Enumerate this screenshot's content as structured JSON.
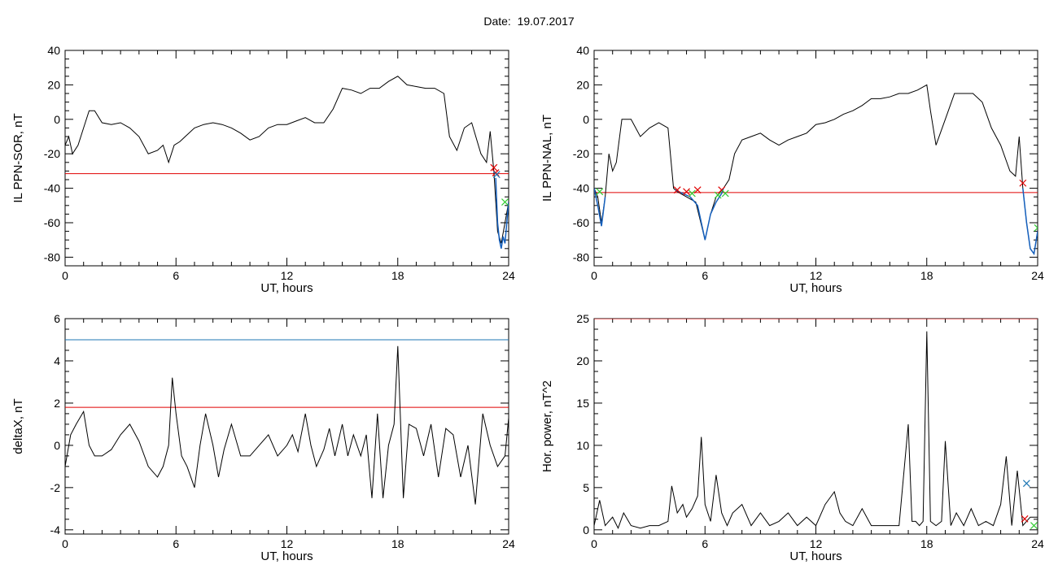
{
  "header": {
    "date_label": "Date:",
    "date_value": "19.07.2017"
  },
  "colors": {
    "trace": "#000000",
    "threshold": "#e00000",
    "upper_threshold": "#1f77b4",
    "highlight_trace": "#1560bd",
    "marker_red": "#e00000",
    "marker_green": "#33cc33",
    "marker_blue": "#1f77b4"
  },
  "chart_data": [
    {
      "type": "line",
      "ylabel": "IL PPN-SOR, nT",
      "xlabel": "UT, hours",
      "xlim": [
        0,
        24
      ],
      "ylim": [
        -85,
        40
      ],
      "xticks": [
        0,
        6,
        12,
        18,
        24
      ],
      "yticks": [
        -80,
        -60,
        -40,
        -20,
        0,
        20,
        40
      ],
      "thresholds": [
        {
          "value": -31.5,
          "color": "#e00000"
        }
      ],
      "series": [
        {
          "x": [
            0,
            0.2,
            0.4,
            0.7,
            1,
            1.3,
            1.6,
            2,
            2.5,
            3,
            3.5,
            4,
            4.5,
            5,
            5.3,
            5.6,
            5.9,
            6.2,
            6.5,
            7,
            7.5,
            8,
            8.5,
            9,
            9.5,
            10,
            10.5,
            11,
            11.5,
            12,
            12.5,
            13,
            13.5,
            14,
            14.5,
            15,
            15.5,
            16,
            16.5,
            17,
            17.5,
            18,
            18.5,
            19,
            19.5,
            20,
            20.5,
            20.8,
            21.2,
            21.6,
            22,
            22.5,
            22.8,
            23,
            23.2,
            23.4,
            23.6,
            23.8,
            24
          ],
          "y": [
            -15,
            -10,
            -20,
            -15,
            -5,
            5,
            5,
            -2,
            -3,
            -2,
            -5,
            -10,
            -20,
            -18,
            -15,
            -25,
            -15,
            -13,
            -10,
            -5,
            -3,
            -2,
            -3,
            -5,
            -8,
            -12,
            -10,
            -5,
            -3,
            -3,
            -1,
            1,
            -2,
            -2,
            6,
            18,
            17,
            15,
            18,
            18,
            22,
            25,
            20,
            19,
            18,
            18,
            15,
            -10,
            -18,
            -5,
            -2,
            -20,
            -25,
            -7,
            -30,
            -65,
            -72,
            -60,
            -48
          ]
        }
      ],
      "highlight": {
        "x": [
          23.3,
          23.4,
          23.5,
          23.6,
          23.7,
          23.8,
          23.9,
          24
        ],
        "y": [
          -34,
          -60,
          -70,
          -75,
          -68,
          -72,
          -60,
          -48
        ]
      },
      "markers": [
        {
          "x": 23.2,
          "y": -28,
          "color": "#e00000"
        },
        {
          "x": 23.3,
          "y": -31,
          "color": "#e00000"
        },
        {
          "x": 23.35,
          "y": -32,
          "color": "#1f77b4"
        },
        {
          "x": 23.8,
          "y": -48,
          "color": "#33cc33"
        }
      ]
    },
    {
      "type": "line",
      "ylabel": "IL PPN-NAL, nT",
      "xlabel": "UT, hours",
      "xlim": [
        0,
        24
      ],
      "ylim": [
        -85,
        40
      ],
      "xticks": [
        0,
        6,
        12,
        18,
        24
      ],
      "yticks": [
        -80,
        -60,
        -40,
        -20,
        0,
        20,
        40
      ],
      "thresholds": [
        {
          "value": -42.5,
          "color": "#e00000"
        }
      ],
      "series": [
        {
          "x": [
            0,
            0.2,
            0.4,
            0.6,
            0.8,
            1,
            1.2,
            1.5,
            2,
            2.5,
            3,
            3.5,
            4,
            4.3,
            4.5,
            5,
            5.5,
            6,
            6.3,
            6.6,
            7,
            7.3,
            7.6,
            8,
            8.5,
            9,
            9.5,
            10,
            10.5,
            11,
            11.5,
            12,
            12.5,
            13,
            13.5,
            14,
            14.5,
            15,
            15.5,
            16,
            16.5,
            17,
            17.5,
            18,
            18.2,
            18.5,
            19,
            19.5,
            20,
            20.5,
            21,
            21.5,
            22,
            22.5,
            22.8,
            23,
            23.2,
            23.4,
            23.6,
            23.8,
            24
          ],
          "y": [
            -40,
            -45,
            -60,
            -45,
            -20,
            -30,
            -25,
            0,
            0,
            -10,
            -5,
            -2,
            -5,
            -40,
            -42,
            -45,
            -48,
            -70,
            -55,
            -45,
            -40,
            -35,
            -20,
            -12,
            -10,
            -8,
            -12,
            -15,
            -12,
            -10,
            -8,
            -3,
            -2,
            0,
            3,
            5,
            8,
            12,
            12,
            13,
            15,
            15,
            17,
            20,
            5,
            -15,
            0,
            15,
            15,
            15,
            10,
            -5,
            -15,
            -30,
            -33,
            -10,
            -40,
            -60,
            -75,
            -78,
            -65
          ]
        }
      ],
      "highlight": {
        "x": [
          4.4,
          4.8,
          5.2,
          5.6,
          6,
          6.3,
          6.6,
          6.9,
          7
        ],
        "y": [
          -41,
          -43,
          -45,
          -50,
          -70,
          -55,
          -48,
          -43,
          -40
        ]
      },
      "highlight2": {
        "x": [
          0,
          0.2,
          0.4,
          0.6
        ],
        "y": [
          -40,
          -50,
          -62,
          -45
        ]
      },
      "highlight3": {
        "x": [
          23.2,
          23.4,
          23.6,
          23.8,
          24
        ],
        "y": [
          -40,
          -60,
          -75,
          -78,
          -65
        ]
      },
      "markers": [
        {
          "x": 0.3,
          "y": -42,
          "color": "#33cc33"
        },
        {
          "x": 4.5,
          "y": -41,
          "color": "#e00000"
        },
        {
          "x": 5.0,
          "y": -42,
          "color": "#e00000"
        },
        {
          "x": 5.3,
          "y": -43,
          "color": "#33cc33"
        },
        {
          "x": 5.6,
          "y": -41,
          "color": "#e00000"
        },
        {
          "x": 6.7,
          "y": -44,
          "color": "#33cc33"
        },
        {
          "x": 6.9,
          "y": -41,
          "color": "#e00000"
        },
        {
          "x": 7.1,
          "y": -43,
          "color": "#33cc33"
        },
        {
          "x": 23.2,
          "y": -37,
          "color": "#e00000"
        },
        {
          "x": 24,
          "y": -63,
          "color": "#33cc33"
        }
      ]
    },
    {
      "type": "line",
      "ylabel": "deltaX, nT",
      "xlabel": "UT, hours",
      "xlim": [
        0,
        24
      ],
      "ylim": [
        -4.2,
        6
      ],
      "xticks": [
        0,
        6,
        12,
        18,
        24
      ],
      "yticks": [
        -4,
        -2,
        0,
        2,
        4,
        6
      ],
      "thresholds": [
        {
          "value": 5.0,
          "color": "#1f77b4"
        },
        {
          "value": 1.8,
          "color": "#e00000"
        }
      ],
      "series": [
        {
          "x": [
            0,
            0.3,
            0.6,
            1,
            1.3,
            1.6,
            2,
            2.5,
            3,
            3.5,
            4,
            4.5,
            5,
            5.3,
            5.6,
            5.8,
            6,
            6.3,
            6.6,
            7,
            7.3,
            7.6,
            8,
            8.3,
            8.6,
            9,
            9.5,
            10,
            10.5,
            11,
            11.5,
            12,
            12.3,
            12.6,
            13,
            13.3,
            13.6,
            14,
            14.3,
            14.6,
            15,
            15.3,
            15.6,
            16,
            16.3,
            16.6,
            16.9,
            17.2,
            17.5,
            17.8,
            18,
            18.3,
            18.6,
            19,
            19.4,
            19.8,
            20.2,
            20.6,
            21,
            21.4,
            21.8,
            22.2,
            22.6,
            23,
            23.4,
            23.8,
            24
          ],
          "y": [
            -1,
            0.5,
            1,
            1.6,
            0,
            -0.5,
            -0.5,
            -0.2,
            0.5,
            1,
            0.2,
            -1,
            -1.5,
            -1,
            0,
            3.2,
            1.5,
            -0.5,
            -1,
            -2,
            0,
            1.5,
            0,
            -1.5,
            -0.2,
            1,
            -0.5,
            -0.5,
            0,
            0.5,
            -0.5,
            0,
            0.5,
            -0.3,
            1.5,
            0,
            -1,
            -0.2,
            0.8,
            -0.5,
            1,
            -0.5,
            0.5,
            -0.5,
            0.5,
            -2.5,
            1.5,
            -2.5,
            0,
            1,
            4.7,
            -2.5,
            1,
            0.8,
            -0.5,
            1,
            -1.5,
            0.8,
            0.5,
            -1.5,
            0,
            -2.8,
            1.5,
            0,
            -1,
            -0.5,
            1.3
          ]
        }
      ]
    },
    {
      "type": "line",
      "ylabel": "Hor. power, nT^2",
      "xlabel": "UT, hours",
      "xlim": [
        0,
        24
      ],
      "ylim": [
        -0.5,
        25
      ],
      "xticks": [
        0,
        6,
        12,
        18,
        24
      ],
      "yticks": [
        0,
        5,
        10,
        15,
        20,
        25
      ],
      "thresholds": [
        {
          "value": 25,
          "color": "#e00000"
        }
      ],
      "series": [
        {
          "x": [
            0,
            0.3,
            0.6,
            1,
            1.3,
            1.6,
            2,
            2.5,
            3,
            3.5,
            4,
            4.2,
            4.5,
            4.8,
            5,
            5.3,
            5.6,
            5.8,
            6,
            6.3,
            6.6,
            6.9,
            7.2,
            7.5,
            8,
            8.5,
            9,
            9.5,
            10,
            10.5,
            11,
            11.5,
            12,
            12.5,
            13,
            13.3,
            13.6,
            14,
            14.5,
            15,
            15.5,
            16,
            16.5,
            17,
            17.2,
            17.4,
            17.6,
            17.8,
            18,
            18.2,
            18.5,
            18.8,
            19,
            19.3,
            19.6,
            20,
            20.4,
            20.8,
            21.2,
            21.6,
            22,
            22.3,
            22.6,
            22.9,
            23.2,
            23.6,
            24
          ],
          "y": [
            0.5,
            3.5,
            0.5,
            1.5,
            0.2,
            2,
            0.5,
            0.2,
            0.5,
            0.5,
            1,
            5.2,
            2,
            3,
            1.5,
            2.5,
            4,
            11,
            3,
            1,
            6.5,
            2,
            0.5,
            2,
            3,
            0.5,
            2,
            0.5,
            1,
            2,
            0.5,
            1.5,
            0.5,
            3,
            4.5,
            2,
            1,
            0.5,
            2.5,
            0.5,
            0.5,
            0.5,
            0.5,
            12.5,
            1,
            1,
            0.5,
            1,
            23.5,
            1,
            0.5,
            1,
            10.5,
            0.5,
            2,
            0.5,
            2.5,
            0.5,
            1,
            0.5,
            3,
            8.7,
            0.5,
            7,
            0.5,
            1.5,
            1.5
          ]
        }
      ],
      "markers": [
        {
          "x": 23.4,
          "y": 5.5,
          "color": "#1f77b4"
        },
        {
          "x": 23.3,
          "y": 1.3,
          "color": "#e00000"
        },
        {
          "x": 23.8,
          "y": 0.5,
          "color": "#33cc33"
        }
      ]
    }
  ]
}
